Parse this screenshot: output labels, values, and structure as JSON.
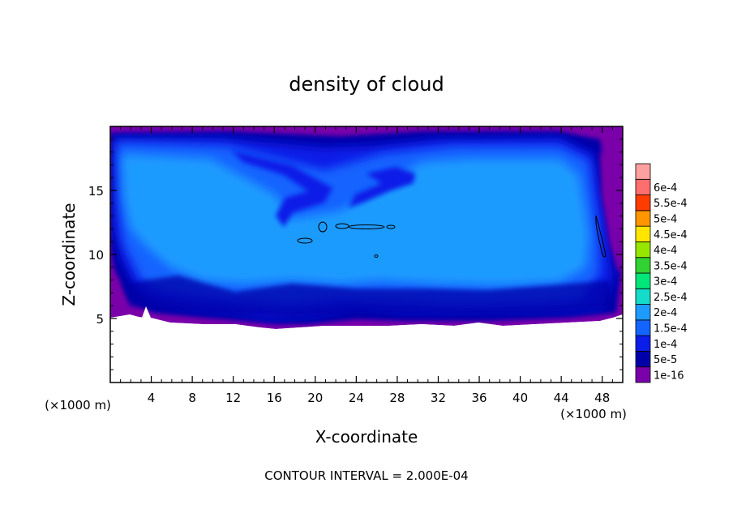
{
  "chart_data": {
    "type": "heatmap",
    "title": "density of cloud",
    "xlabel": "X-coordinate",
    "ylabel": "Z-coordinate",
    "x_unit_left": "(×1000 m)",
    "x_unit_right": "(×1000 m)",
    "xlim": [
      0,
      50
    ],
    "ylim": [
      0,
      20
    ],
    "xticks": [
      4,
      8,
      12,
      16,
      20,
      24,
      28,
      32,
      36,
      40,
      44,
      48
    ],
    "xtick_labels": [
      "4",
      "8",
      "12",
      "16",
      "20",
      "24",
      "28",
      "32",
      "36",
      "40",
      "44",
      "48"
    ],
    "yticks": [
      5,
      10,
      15
    ],
    "ytick_labels": [
      "5",
      "10",
      "15"
    ],
    "footer": "CONTOUR INTERVAL = 2.000E-04",
    "colorbar": {
      "levels": [
        "1e-16",
        "5e-5",
        "1e-4",
        "1.5e-4",
        "2e-4",
        "2.5e-4",
        "3e-4",
        "3.5e-4",
        "4e-4",
        "4.5e-4",
        "5e-4",
        "5.5e-4",
        "6e-4"
      ],
      "colors": [
        "#7a00aa",
        "#0000a8",
        "#0a1ee8",
        "#1464ff",
        "#1e9bff",
        "#14dcc8",
        "#00e678",
        "#32d232",
        "#96e600",
        "#ffe600",
        "#ff9600",
        "#ff3c00",
        "#ff6e6e",
        "#ffa0a0"
      ]
    },
    "grid": false
  }
}
